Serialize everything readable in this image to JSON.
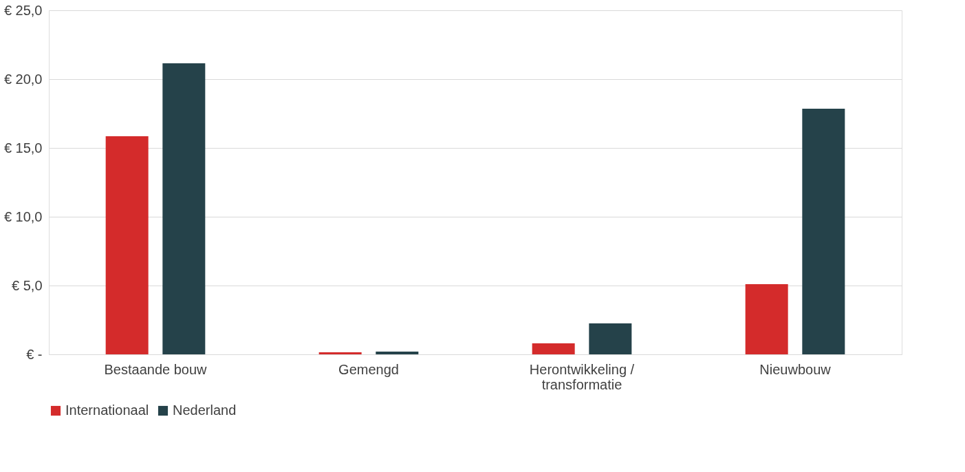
{
  "chart_data": {
    "type": "bar",
    "categories": [
      "Bestaande bouw",
      "Gemengd",
      "Herontwikkeling / transformatie",
      "Nieuwbouw"
    ],
    "series": [
      {
        "name": "Internationaal",
        "color": "#d42b2b",
        "values": [
          15.85,
          0.15,
          0.8,
          5.1
        ]
      },
      {
        "name": "Nederland",
        "color": "#25424a",
        "values": [
          21.15,
          0.2,
          2.25,
          17.85
        ]
      }
    ],
    "ylim": [
      0,
      25
    ],
    "yticks": [
      {
        "value": 0,
        "label": "€ -"
      },
      {
        "value": 5,
        "label": "€ 5,0"
      },
      {
        "value": 10,
        "label": "€ 10,0"
      },
      {
        "value": 15,
        "label": "€ 15,0"
      },
      {
        "value": 20,
        "label": "€ 20,0"
      },
      {
        "value": 25,
        "label": "€ 25,0"
      }
    ],
    "grid": "y",
    "legend": "bottom"
  }
}
